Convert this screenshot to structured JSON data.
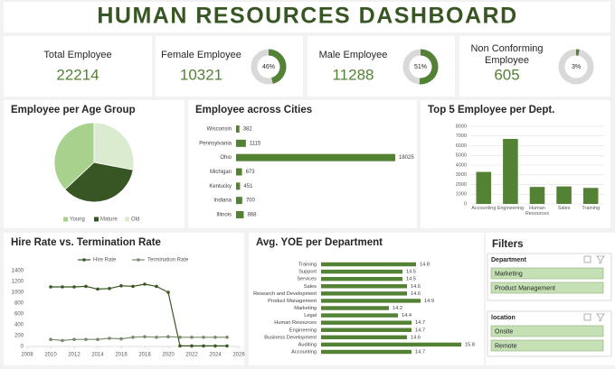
{
  "title": "HUMAN RESOURCES DASHBOARD",
  "kpis": [
    {
      "label": "Total Employee",
      "value": 22214
    },
    {
      "label": "Female Employee",
      "value": 10321,
      "percent": 46,
      "percent_label": "46%"
    },
    {
      "label": "Male Employee",
      "value": 11288,
      "percent": 51,
      "percent_label": "51%"
    },
    {
      "label": "Non Conforming Employee",
      "value": 605,
      "percent": 3,
      "percent_label": "3%"
    }
  ],
  "chart_data": [
    {
      "type": "pie",
      "title": "Employee per Age Group",
      "categories": [
        "Young",
        "Mature",
        "Old"
      ],
      "values": [
        37,
        35,
        28
      ],
      "colors": [
        "#a9d18e",
        "#375623",
        "#dbebd0"
      ],
      "legend": "bottom"
    },
    {
      "type": "hbar",
      "title": "Employee across Cities",
      "categories": [
        "Wisconsin",
        "Pennsylvania",
        "Ohio",
        "Michigan",
        "Kentucky",
        "Indiana",
        "Illinois"
      ],
      "values": [
        382,
        1115,
        18025,
        673,
        451,
        700,
        868
      ],
      "color": "#548235"
    },
    {
      "type": "bar",
      "title": "Top 5 Employee per Dept.",
      "categories": [
        "Accounting",
        "Engineering",
        "Human Resources",
        "Sales",
        "Training"
      ],
      "values": [
        3300,
        6700,
        1750,
        1800,
        1650
      ],
      "color": "#548235",
      "ylim": [
        0,
        8000
      ],
      "yticks": [
        0,
        1000,
        2000,
        3000,
        4000,
        5000,
        6000,
        7000,
        8000
      ],
      "grid": true
    },
    {
      "type": "line",
      "title": "Hire Rate vs. Termination Rate",
      "x": [
        2010,
        2011,
        2012,
        2013,
        2014,
        2015,
        2016,
        2017,
        2018,
        2019,
        2020,
        2021,
        2022,
        2023,
        2024,
        2025
      ],
      "series": [
        {
          "name": "Hire Rate",
          "color": "#385723",
          "values": [
            1100,
            1100,
            1100,
            1110,
            1060,
            1070,
            1120,
            1110,
            1150,
            1110,
            1000,
            10,
            10,
            10,
            10,
            10
          ]
        },
        {
          "name": "Termination Rate",
          "color": "#7b8a6e",
          "values": [
            130,
            110,
            130,
            130,
            130,
            150,
            140,
            170,
            180,
            170,
            180,
            170,
            170,
            170,
            170,
            170
          ]
        }
      ],
      "xlim": [
        2008,
        2026
      ],
      "xticks": [
        2008,
        2010,
        2012,
        2014,
        2016,
        2018,
        2020,
        2022,
        2024,
        2026
      ],
      "ylim": [
        0,
        1400
      ],
      "yticks": [
        0,
        200,
        400,
        600,
        800,
        1000,
        1200,
        1400
      ],
      "grid": false,
      "legend": "top"
    },
    {
      "type": "hbar",
      "title": "Avg. YOE per Department",
      "categories": [
        "Training",
        "Support",
        "Services",
        "Sales",
        "Research and Development",
        "Product Management",
        "Marketing",
        "Legal",
        "Human Resources",
        "Engineering",
        "Business Development",
        "Auditing",
        "Accounting"
      ],
      "values": [
        14.8,
        14.5,
        14.5,
        14.6,
        14.6,
        14.9,
        14.2,
        14.4,
        14.7,
        14.7,
        14.6,
        15.8,
        14.7
      ],
      "xlim": [
        12.7,
        16
      ],
      "color": "#548235"
    }
  ],
  "filters": {
    "title": "Filters",
    "groups": [
      {
        "title": "Department",
        "items": [
          "Marketing",
          "Product Management"
        ]
      },
      {
        "title": "location",
        "items": [
          "Onsite",
          "Remote"
        ]
      }
    ]
  }
}
